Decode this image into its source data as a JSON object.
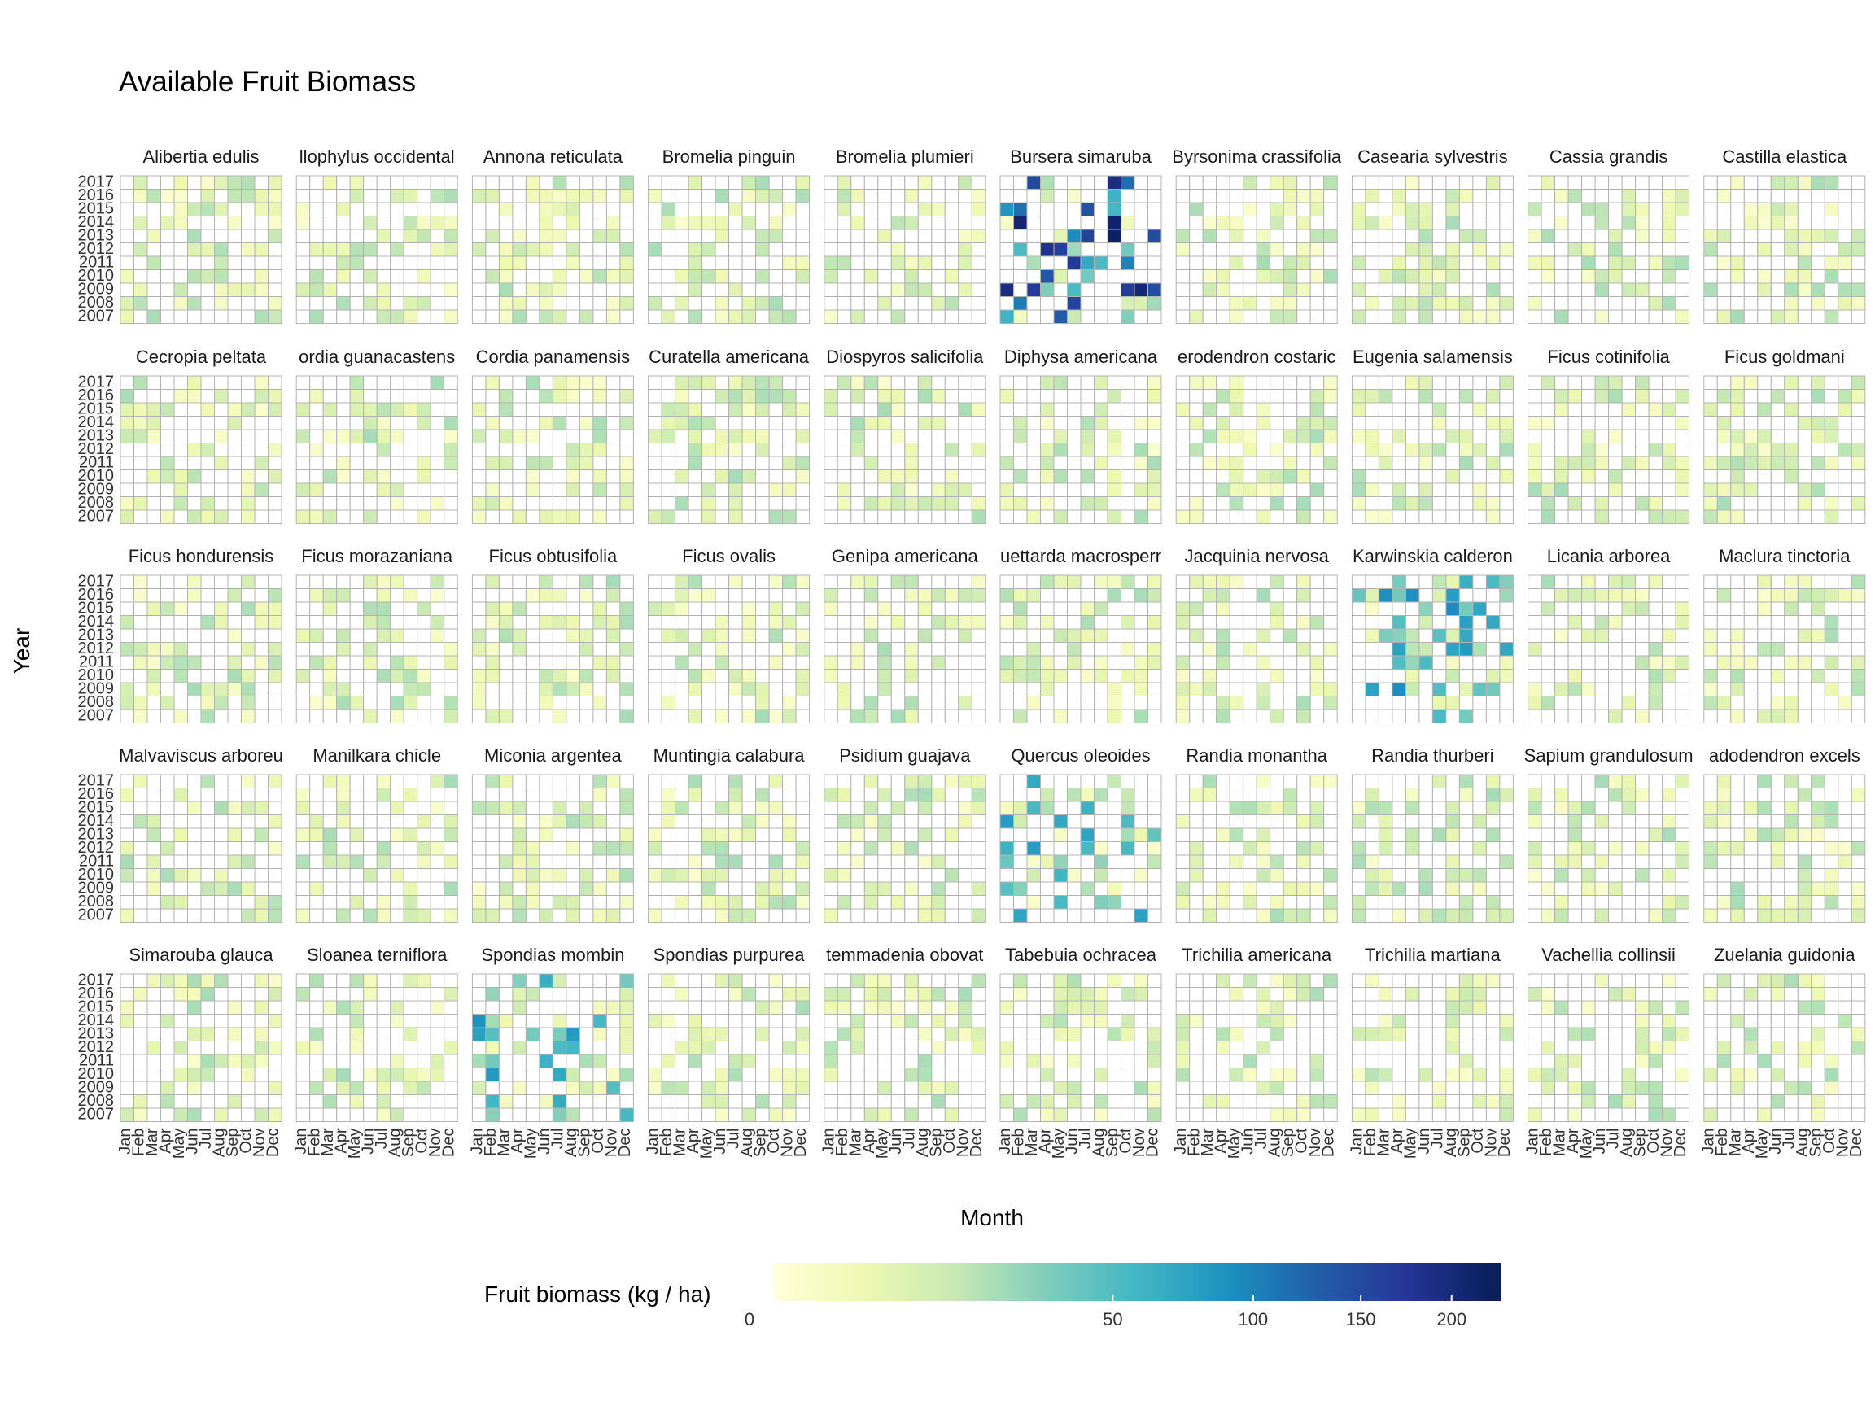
{
  "chart_data": {
    "type": "heatmap",
    "title": "Available Fruit Biomass",
    "xlabel": "Month",
    "ylabel": "Year",
    "months": [
      "Jan",
      "Feb",
      "Mar",
      "Apr",
      "May",
      "Jun",
      "Jul",
      "Aug",
      "Sep",
      "Oct",
      "Nov",
      "Dec"
    ],
    "years": [
      "2017",
      "2016",
      "2015",
      "2014",
      "2013",
      "2012",
      "2011",
      "2010",
      "2009",
      "2008",
      "2007"
    ],
    "facet_grid": "5 rows x 10 columns",
    "legend": {
      "title": "Fruit biomass (kg / ha)",
      "scale": "square-root",
      "range": [
        0,
        230
      ],
      "tick_values": [
        0,
        50,
        100,
        150,
        200
      ],
      "tick_labels": [
        "0",
        "50",
        "100",
        "150",
        "200"
      ],
      "colors": [
        "#ffffd9",
        "#edf8b1",
        "#c7e9b4",
        "#7fcdbb",
        "#41b6c4",
        "#1d91c0",
        "#225ea8",
        "#253494",
        "#081d58"
      ],
      "placement": "bottom"
    },
    "facets": [
      {
        "species": "Alibertia edulis",
        "label": "Alibertia edulis",
        "level": "low",
        "tone": 1
      },
      {
        "species": "Allophylus occidentalis",
        "label": "llophylus occidental",
        "level": "low",
        "tone": 2
      },
      {
        "species": "Annona reticulata",
        "label": "Annona reticulata",
        "level": "low",
        "tone": 3
      },
      {
        "species": "Bromelia pinguin",
        "label": "Bromelia pinguin",
        "level": "low",
        "tone": 4
      },
      {
        "species": "Bromelia plumieri",
        "label": "Bromelia plumieri",
        "level": "low",
        "tone": 5
      },
      {
        "species": "Bursera simaruba",
        "label": "Bursera simaruba",
        "level": "high",
        "tone": 6
      },
      {
        "species": "Byrsonima crassifolia",
        "label": "Byrsonima crassifolia",
        "level": "low",
        "tone": 7
      },
      {
        "species": "Casearia sylvestris",
        "label": "Casearia sylvestris",
        "level": "low",
        "tone": 8
      },
      {
        "species": "Cassia grandis",
        "label": "Cassia grandis",
        "level": "low",
        "tone": 9
      },
      {
        "species": "Castilla elastica",
        "label": "Castilla elastica",
        "level": "low",
        "tone": 10
      },
      {
        "species": "Cecropia peltata",
        "label": "Cecropia peltata",
        "level": "low",
        "tone": 11
      },
      {
        "species": "Cordia guanacastensis",
        "label": "ordia guanacastens",
        "level": "low",
        "tone": 12
      },
      {
        "species": "Cordia panamensis",
        "label": "Cordia panamensis",
        "level": "low",
        "tone": 13
      },
      {
        "species": "Curatella americana",
        "label": "Curatella americana",
        "level": "low",
        "tone": 14
      },
      {
        "species": "Diospyros salicifolia",
        "label": "Diospyros salicifolia",
        "level": "low",
        "tone": 15
      },
      {
        "species": "Diphysa americana",
        "label": "Diphysa americana",
        "level": "low",
        "tone": 16
      },
      {
        "species": "Clerodendron costaricense",
        "label": "erodendron costaric",
        "level": "low",
        "tone": 17
      },
      {
        "species": "Eugenia salamensis",
        "label": "Eugenia salamensis",
        "level": "low",
        "tone": 18
      },
      {
        "species": "Ficus cotinifolia",
        "label": "Ficus cotinifolia",
        "level": "low",
        "tone": 19
      },
      {
        "species": "Ficus goldmani",
        "label": "Ficus goldmani",
        "level": "low",
        "tone": 20
      },
      {
        "species": "Ficus hondurensis",
        "label": "Ficus hondurensis",
        "level": "low",
        "tone": 21
      },
      {
        "species": "Ficus morazaniana",
        "label": "Ficus morazaniana",
        "level": "low",
        "tone": 22
      },
      {
        "species": "Ficus obtusifolia",
        "label": "Ficus obtusifolia",
        "level": "low",
        "tone": 23
      },
      {
        "species": "Ficus ovalis",
        "label": "Ficus ovalis",
        "level": "low",
        "tone": 24
      },
      {
        "species": "Genipa americana",
        "label": "Genipa americana",
        "level": "low",
        "tone": 25
      },
      {
        "species": "Guettarda macrosperma",
        "label": "uettarda macrosperr",
        "level": "low",
        "tone": 26
      },
      {
        "species": "Jacquinia nervosa",
        "label": "Jacquinia nervosa",
        "level": "low",
        "tone": 27
      },
      {
        "species": "Karwinskia calderonii",
        "label": "Karwinskia calderon",
        "level": "medium",
        "tone": 28
      },
      {
        "species": "Licania arborea",
        "label": "Licania arborea",
        "level": "low",
        "tone": 29
      },
      {
        "species": "Maclura tinctoria",
        "label": "Maclura tinctoria",
        "level": "low",
        "tone": 30
      },
      {
        "species": "Malvaviscus arboreus",
        "label": "Malvaviscus arboreu",
        "level": "low",
        "tone": 31
      },
      {
        "species": "Manilkara chicle",
        "label": "Manilkara chicle",
        "level": "low",
        "tone": 32
      },
      {
        "species": "Miconia argentea",
        "label": "Miconia argentea",
        "level": "low",
        "tone": 33
      },
      {
        "species": "Muntingia calabura",
        "label": "Muntingia calabura",
        "level": "low",
        "tone": 34
      },
      {
        "species": "Psidium guajava",
        "label": "Psidium guajava",
        "level": "low",
        "tone": 35
      },
      {
        "species": "Quercus oleoides",
        "label": "Quercus oleoides",
        "level": "medium",
        "tone": 36
      },
      {
        "species": "Randia monantha",
        "label": "Randia monantha",
        "level": "low",
        "tone": 37
      },
      {
        "species": "Randia thurberi",
        "label": "Randia thurberi",
        "level": "low",
        "tone": 38
      },
      {
        "species": "Sapium glandulosum",
        "label": "Sapium grandulosum",
        "level": "low",
        "tone": 39
      },
      {
        "species": "Sciadodendron excelsum",
        "label": "adodendron excels",
        "level": "low",
        "tone": 40
      },
      {
        "species": "Simarouba glauca",
        "label": "Simarouba glauca",
        "level": "low",
        "tone": 41
      },
      {
        "species": "Sloanea terniflora",
        "label": "Sloanea terniflora",
        "level": "low",
        "tone": 42
      },
      {
        "species": "Spondias mombin",
        "label": "Spondias mombin",
        "level": "medium",
        "tone": 43
      },
      {
        "species": "Spondias purpurea",
        "label": "Spondias purpurea",
        "level": "low",
        "tone": 44
      },
      {
        "species": "Stemmadenia obovata",
        "label": "temmadenia obovat",
        "level": "low",
        "tone": 45
      },
      {
        "species": "Tabebuia ochracea",
        "label": "Tabebuia ochracea",
        "level": "low",
        "tone": 46
      },
      {
        "species": "Trichilia americana",
        "label": "Trichilia americana",
        "level": "low",
        "tone": 47
      },
      {
        "species": "Trichilia martiana",
        "label": "Trichilia martiana",
        "level": "low",
        "tone": 48
      },
      {
        "species": "Vachellia collinsii",
        "label": "Vachellia collinsii",
        "level": "low",
        "tone": 49
      },
      {
        "species": "Zuelania guidonia",
        "label": "Zuelania guidonia",
        "level": "low",
        "tone": 50
      }
    ]
  }
}
